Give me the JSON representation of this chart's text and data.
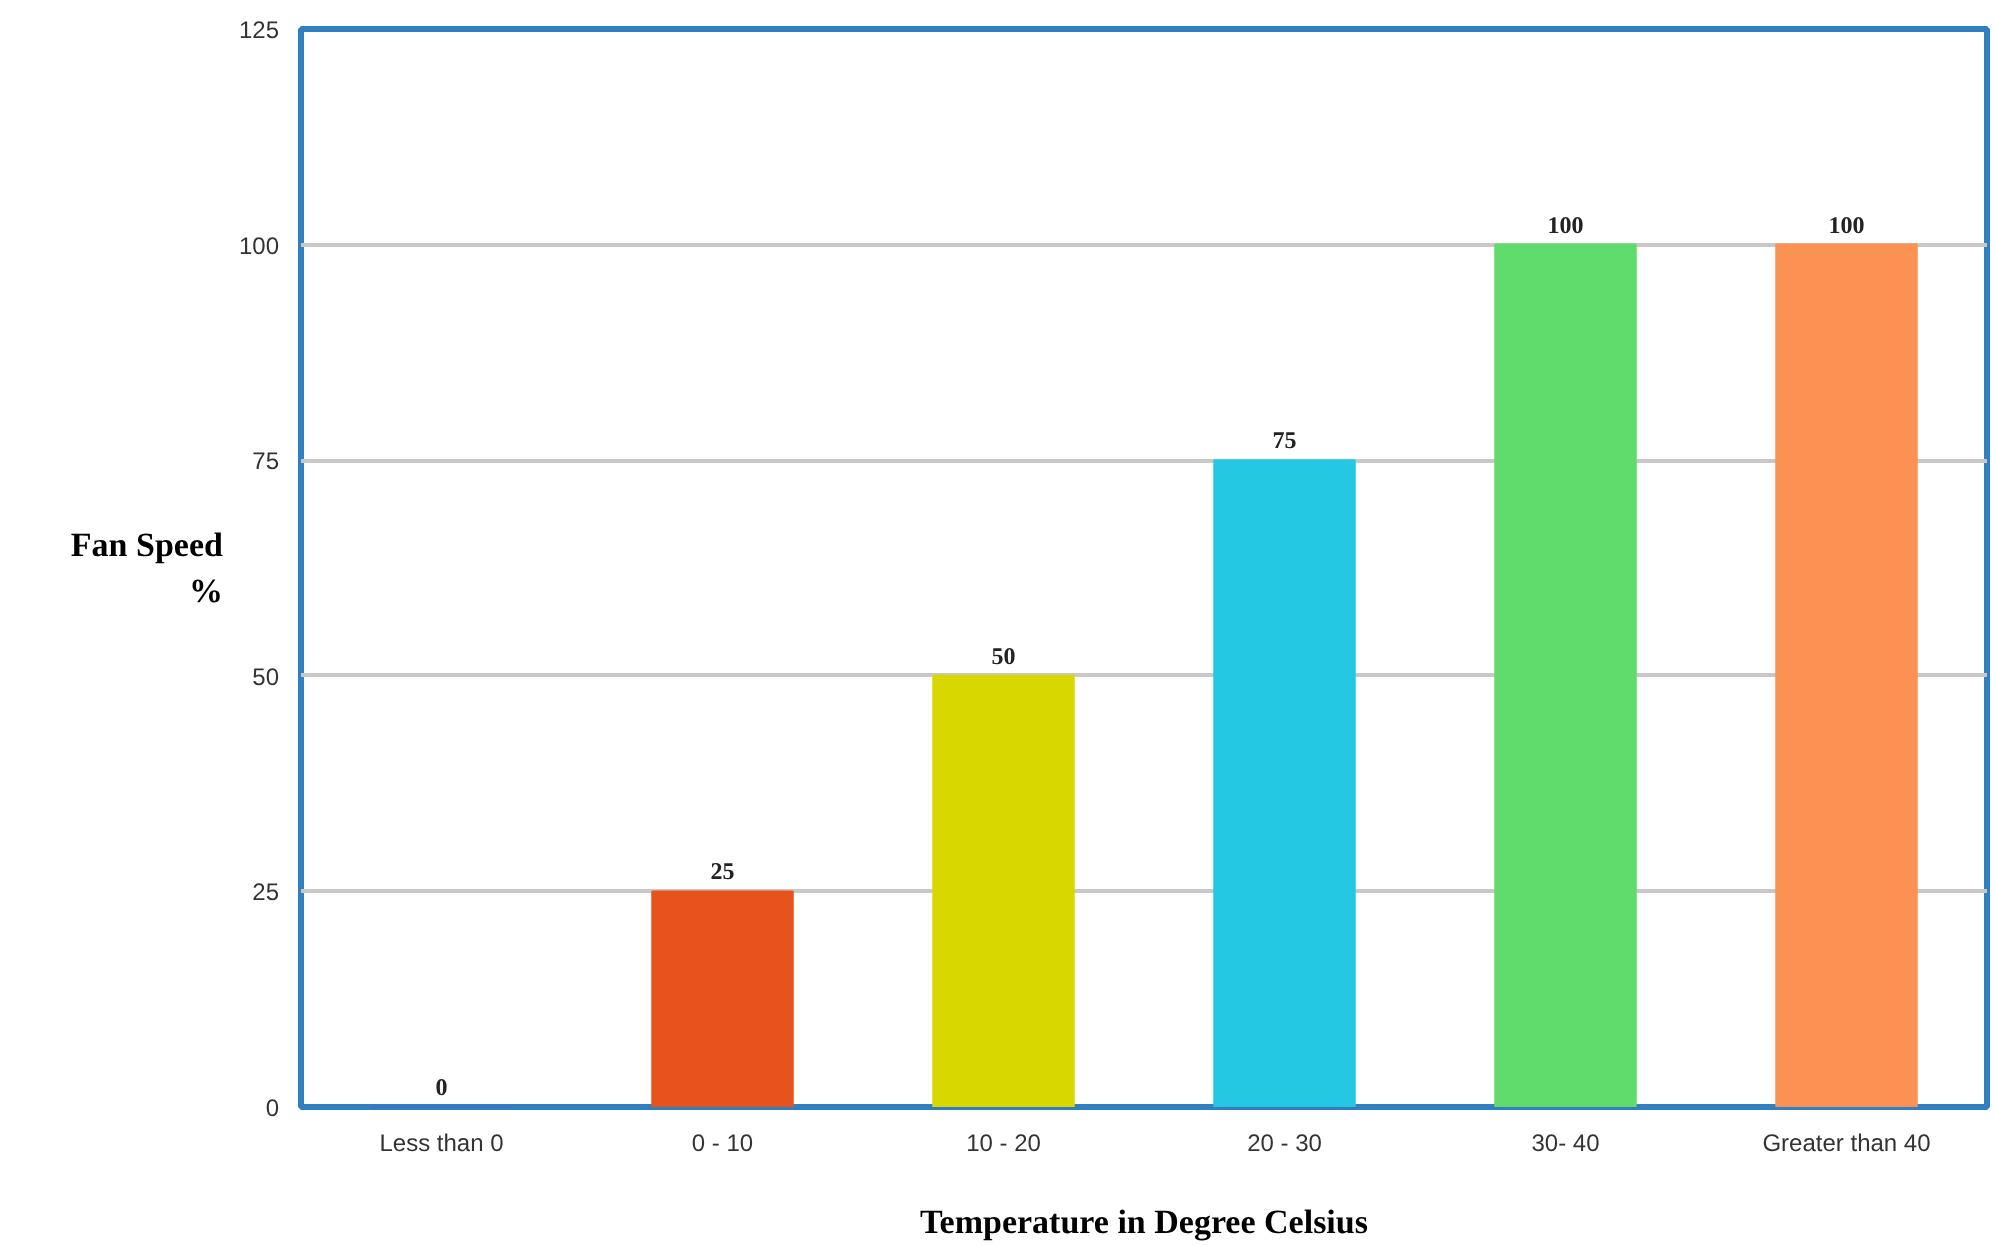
{
  "chart_data": {
    "type": "bar",
    "xlabel": "Temperature in Degree Celsius",
    "ylabel": "Fan Speed\n%",
    "categories": [
      "Less than 0",
      "0 - 10",
      "10 - 20",
      "20 - 30",
      "30- 40",
      "Greater than 40"
    ],
    "values": [
      0,
      25,
      50,
      75,
      100,
      100
    ],
    "colors": [
      "#3a6fc4",
      "#e8531d",
      "#d8d800",
      "#25c8e2",
      "#5fdc6b",
      "#fb9152"
    ],
    "ylim": [
      0,
      125
    ],
    "yticks": [
      0,
      25,
      50,
      75,
      100,
      125
    ],
    "grid": "y",
    "data_labels": true
  }
}
